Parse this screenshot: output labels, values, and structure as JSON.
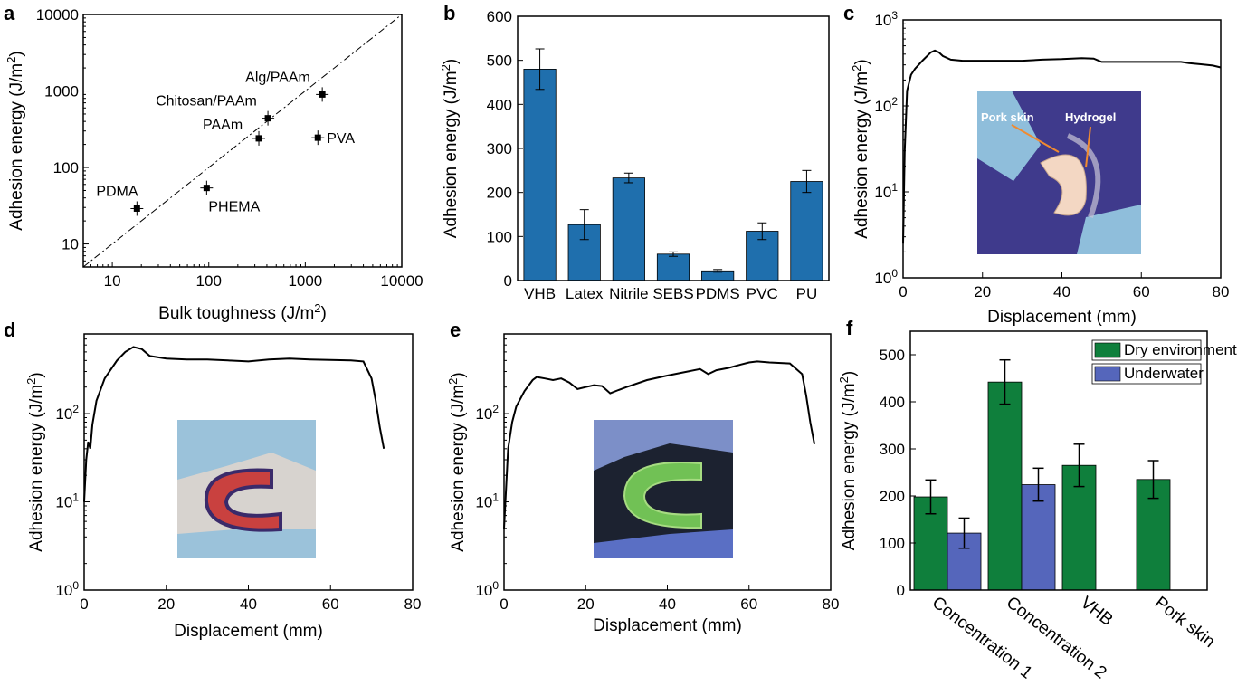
{
  "panels": [
    {
      "label": "a"
    },
    {
      "label": "b"
    },
    {
      "label": "c"
    },
    {
      "label": "d"
    },
    {
      "label": "e"
    },
    {
      "label": "f"
    }
  ],
  "chart_data": [
    {
      "panel": "a",
      "type": "scatter",
      "xlabel": "Bulk toughness (J/m²)",
      "ylabel": "Adhesion energy (J/m²)",
      "xscale": "log",
      "yscale": "log",
      "xlim": [
        5,
        10000
      ],
      "ylim": [
        5,
        10000
      ],
      "xticks": [
        "10",
        "100",
        "1000",
        "10000"
      ],
      "yticks": [
        "10",
        "100",
        "1000",
        "10000"
      ],
      "reference_line": "y = x (dashed)",
      "points": [
        {
          "label": "PDMA",
          "x": 18,
          "y": 29
        },
        {
          "label": "PHEMA",
          "x": 95,
          "y": 54
        },
        {
          "label": "PAAm",
          "x": 330,
          "y": 240
        },
        {
          "label": "Chitosan/PAAm",
          "x": 410,
          "y": 440
        },
        {
          "label": "PVA",
          "x": 1350,
          "y": 245
        },
        {
          "label": "Alg/PAAm",
          "x": 1500,
          "y": 900
        }
      ]
    },
    {
      "panel": "b",
      "type": "bar",
      "ylabel": "Adhesion energy (J/m²)",
      "ylim": [
        0,
        600
      ],
      "yticks": [
        "0",
        "100",
        "200",
        "300",
        "400",
        "500",
        "600"
      ],
      "categories": [
        "VHB",
        "Latex",
        "Nitrile",
        "SEBS",
        "PDMS",
        "PVC",
        "PU"
      ],
      "values": [
        480,
        127,
        233,
        60,
        22,
        112,
        225
      ],
      "errors": [
        46,
        34,
        11,
        5,
        3,
        19,
        25
      ],
      "color": "#1f6fad"
    },
    {
      "panel": "c",
      "type": "line",
      "xlabel": "Displacement (mm)",
      "ylabel": "Adhesion energy (J/m²)",
      "yscale": "log",
      "xlim": [
        0,
        80
      ],
      "ylim": [
        1,
        1000
      ],
      "xticks": [
        "0",
        "20",
        "40",
        "60",
        "80"
      ],
      "yticks": [
        "10⁰",
        "10¹",
        "10²",
        "10³"
      ],
      "inset_labels": [
        "Pork skin",
        "Hydrogel"
      ],
      "x": [
        0,
        0.4,
        1,
        2,
        3,
        5,
        7,
        8,
        9,
        10,
        12,
        15,
        20,
        25,
        30,
        35,
        40,
        45,
        48,
        50,
        55,
        60,
        65,
        70,
        72,
        75,
        78,
        80
      ],
      "y": [
        2.5,
        30,
        150,
        230,
        270,
        340,
        420,
        440,
        420,
        380,
        345,
        335,
        335,
        335,
        335,
        345,
        350,
        360,
        355,
        325,
        325,
        325,
        325,
        325,
        315,
        305,
        295,
        280
      ]
    },
    {
      "panel": "d",
      "type": "line",
      "xlabel": "Displacement (mm)",
      "ylabel": "Adhesion energy (J/m²)",
      "yscale": "log",
      "xlim": [
        0,
        80
      ],
      "ylim": [
        1,
        800
      ],
      "xticks": [
        "0",
        "20",
        "40",
        "60",
        "80"
      ],
      "yticks": [
        "10⁰",
        "10¹",
        "10²"
      ],
      "x": [
        0,
        0.5,
        1,
        1.5,
        2,
        3,
        5,
        8,
        10,
        12,
        14,
        16,
        20,
        25,
        30,
        35,
        40,
        45,
        50,
        55,
        60,
        65,
        68,
        70,
        71,
        72,
        73
      ],
      "y": [
        10,
        30,
        48,
        40,
        75,
        140,
        250,
        400,
        500,
        570,
        540,
        450,
        420,
        410,
        410,
        400,
        390,
        410,
        420,
        410,
        405,
        400,
        390,
        250,
        140,
        70,
        40
      ]
    },
    {
      "panel": "e",
      "type": "line",
      "xlabel": "Displacement (mm)",
      "ylabel": "Adhesion energy (J/m²)",
      "yscale": "log",
      "xlim": [
        0,
        80
      ],
      "ylim": [
        1,
        800
      ],
      "xticks": [
        "0",
        "20",
        "40",
        "60",
        "80"
      ],
      "yticks": [
        "10⁰",
        "10¹",
        "10²"
      ],
      "x": [
        0,
        1,
        2,
        3,
        5,
        7,
        8,
        10,
        12,
        14,
        16,
        18,
        20,
        22,
        24,
        26,
        28,
        30,
        35,
        40,
        45,
        48,
        50,
        52,
        55,
        58,
        60,
        62,
        65,
        70,
        73,
        74,
        75,
        76
      ],
      "y": [
        5,
        40,
        80,
        120,
        180,
        240,
        260,
        250,
        240,
        250,
        225,
        190,
        200,
        210,
        205,
        170,
        185,
        200,
        240,
        270,
        300,
        320,
        280,
        310,
        330,
        360,
        380,
        390,
        380,
        370,
        280,
        160,
        80,
        45
      ]
    },
    {
      "panel": "f",
      "type": "bar",
      "ylabel": "Adhesion energy (J/m²)",
      "ylim": [
        0,
        550
      ],
      "yticks": [
        "0",
        "100",
        "200",
        "300",
        "400",
        "500"
      ],
      "categories": [
        "Concentration 1",
        "Concentration 2",
        "VHB",
        "Pork skin"
      ],
      "series": [
        {
          "name": "Dry environment",
          "values": [
            198,
            442,
            265,
            235
          ],
          "errors": [
            36,
            47,
            45,
            40
          ],
          "color": "#0f7f3c"
        },
        {
          "name": "Underwater",
          "values": [
            121,
            224,
            null,
            null
          ],
          "errors": [
            32,
            35,
            null,
            null
          ],
          "color": "#5566bb"
        }
      ],
      "legend": "top-right"
    }
  ]
}
